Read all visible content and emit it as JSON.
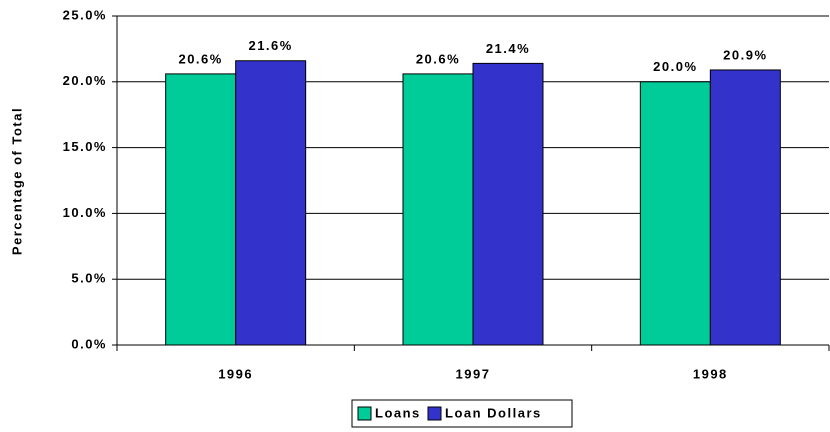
{
  "chart_data": {
    "type": "bar",
    "y_label": "Percentage of Total",
    "categories": [
      "1996",
      "1997",
      "1998"
    ],
    "series": [
      {
        "name": "Loans",
        "color": "#00cc99",
        "values": [
          20.6,
          20.6,
          20.0
        ],
        "value_labels": [
          "20.6%",
          "20.6%",
          "20.0%"
        ]
      },
      {
        "name": "Loan Dollars",
        "color": "#3333cc",
        "values": [
          21.6,
          21.4,
          20.9
        ],
        "value_labels": [
          "21.6%",
          "21.4%",
          "20.9%"
        ]
      }
    ],
    "ylim": [
      0,
      25
    ],
    "yticks": [
      {
        "value": 0,
        "label": "0.0%"
      },
      {
        "value": 5,
        "label": "5.0%"
      },
      {
        "value": 10,
        "label": "10.0%"
      },
      {
        "value": 15,
        "label": "15.0%"
      },
      {
        "value": 20,
        "label": "20.0%"
      },
      {
        "value": 25,
        "label": "25.0%"
      }
    ],
    "grid": true,
    "legend": "bottom"
  }
}
